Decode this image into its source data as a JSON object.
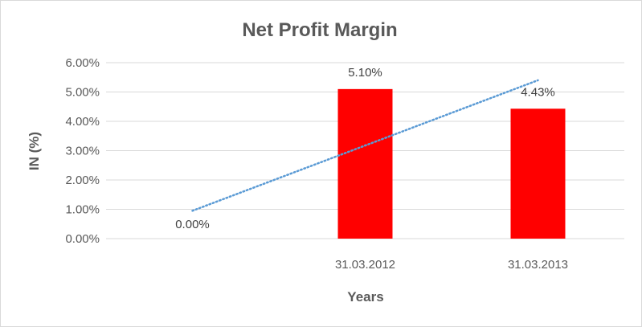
{
  "chart_data": {
    "type": "bar",
    "title": "Net Profit Margin",
    "xlabel": "Years",
    "ylabel": "IN (%)",
    "categories": [
      "",
      "31.03.2012",
      "31.03.2013"
    ],
    "values": [
      0.0,
      5.1,
      4.43
    ],
    "data_labels": [
      "0.00%",
      "5.10%",
      "4.43%"
    ],
    "ylim": [
      0,
      6
    ],
    "yticks": [
      "0.00%",
      "1.00%",
      "2.00%",
      "3.00%",
      "4.00%",
      "5.00%",
      "6.00%"
    ],
    "grid": true,
    "legend": "none",
    "bar_color": "#ff0000",
    "trendline": {
      "type": "linear",
      "style": "dotted",
      "color": "#5b9bd5",
      "start": 0.95,
      "end": 5.4
    }
  }
}
